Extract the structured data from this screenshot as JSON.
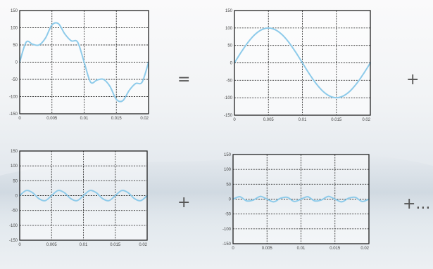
{
  "operators": {
    "equals": "=",
    "plus_1": "+",
    "plus_2": "+",
    "plus_ellipsis": "+..."
  },
  "colors": {
    "line": "#8ecbea",
    "axes": "#222222",
    "grid": "#333333"
  },
  "chart_data": [
    {
      "type": "line",
      "title": "",
      "xlabel": "",
      "ylabel": "",
      "xlim": [
        0,
        0.02
      ],
      "ylim": [
        -150,
        150
      ],
      "grid": true,
      "xticks": [
        0,
        0.005,
        0.01,
        0.015,
        0.02
      ],
      "xtick_labels": [
        "0",
        "0.005",
        "0.01",
        "0.015",
        "0.02"
      ],
      "yticks": [
        150,
        100,
        50,
        0,
        -50,
        -100,
        -150
      ],
      "ytick_labels": [
        "150",
        "100",
        "50",
        "0",
        "-50",
        "-100",
        "-150"
      ],
      "series": [
        {
          "x": [
            0,
            0.001,
            0.002,
            0.003,
            0.004,
            0.005,
            0.006,
            0.007,
            0.008,
            0.009,
            0.01,
            0.011,
            0.012,
            0.013,
            0.014,
            0.015,
            0.016,
            0.017,
            0.018,
            0.019,
            0.02
          ],
          "values": [
            0,
            58,
            52,
            50,
            70,
            108,
            112,
            82,
            62,
            58,
            0,
            -58,
            -52,
            -50,
            -70,
            -108,
            -112,
            -82,
            -62,
            -58,
            0
          ]
        }
      ]
    },
    {
      "type": "line",
      "title": "",
      "xlabel": "",
      "ylabel": "",
      "xlim": [
        0,
        0.02
      ],
      "ylim": [
        -150,
        150
      ],
      "grid": true,
      "xticks": [
        0,
        0.005,
        0.01,
        0.015,
        0.02
      ],
      "xtick_labels": [
        "0",
        "0.005",
        "0.01",
        "0.015",
        "0.02"
      ],
      "yticks": [
        150,
        100,
        50,
        0,
        -50,
        -100,
        -150
      ],
      "ytick_labels": [
        "150",
        "100",
        "50",
        "0",
        "-50",
        "-100",
        "-150"
      ],
      "series": [
        {
          "x": [
            0,
            0.001,
            0.002,
            0.003,
            0.004,
            0.005,
            0.006,
            0.007,
            0.008,
            0.009,
            0.01,
            0.011,
            0.012,
            0.013,
            0.014,
            0.015,
            0.016,
            0.017,
            0.018,
            0.019,
            0.02
          ],
          "values": [
            0,
            31,
            59,
            81,
            95,
            100,
            95,
            81,
            59,
            31,
            0,
            -31,
            -59,
            -81,
            -95,
            -100,
            -95,
            -81,
            -59,
            -31,
            0
          ]
        }
      ]
    },
    {
      "type": "line",
      "title": "",
      "xlabel": "",
      "ylabel": "",
      "xlim": [
        0,
        0.02
      ],
      "ylim": [
        -150,
        150
      ],
      "grid": true,
      "xticks": [
        0,
        0.005,
        0.01,
        0.015,
        0.02
      ],
      "xtick_labels": [
        "0",
        "0.005",
        "0.01",
        "0.015",
        "0.02"
      ],
      "yticks": [
        150,
        100,
        50,
        0,
        -50,
        -100,
        -150
      ],
      "ytick_labels": [
        "150",
        "100",
        "50",
        "0",
        "-50",
        "-100",
        "-150"
      ],
      "series": [
        {
          "x": [
            0,
            0.001,
            0.002,
            0.003,
            0.004,
            0.005,
            0.006,
            0.007,
            0.008,
            0.009,
            0.01,
            0.011,
            0.012,
            0.013,
            0.014,
            0.015,
            0.016,
            0.017,
            0.018,
            0.019,
            0.02
          ],
          "values": [
            0,
            17,
            10,
            -10,
            -17,
            0,
            17,
            10,
            -10,
            -17,
            0,
            17,
            10,
            -10,
            -17,
            0,
            17,
            10,
            -10,
            -17,
            0
          ]
        }
      ]
    },
    {
      "type": "line",
      "title": "",
      "xlabel": "",
      "ylabel": "",
      "xlim": [
        0,
        0.02
      ],
      "ylim": [
        -150,
        150
      ],
      "grid": true,
      "xticks": [
        0,
        0.005,
        0.01,
        0.015,
        0.02
      ],
      "xtick_labels": [
        "0",
        "0.005",
        "0.01",
        "0.015",
        "0.02"
      ],
      "yticks": [
        150,
        100,
        50,
        0,
        -50,
        -100,
        -150
      ],
      "ytick_labels": [
        "150",
        "100",
        "50",
        "0",
        "-50",
        "-100",
        "-150"
      ],
      "series": [
        {
          "x": [
            0,
            0.001,
            0.002,
            0.003,
            0.004,
            0.005,
            0.006,
            0.007,
            0.008,
            0.009,
            0.01,
            0.011,
            0.012,
            0.013,
            0.014,
            0.015,
            0.016,
            0.017,
            0.018,
            0.019,
            0.02
          ],
          "values": [
            0,
            8,
            -6,
            -3,
            9,
            0,
            -9,
            3,
            6,
            -8,
            0,
            8,
            -6,
            -3,
            9,
            0,
            -9,
            3,
            6,
            -8,
            0
          ]
        }
      ]
    }
  ]
}
